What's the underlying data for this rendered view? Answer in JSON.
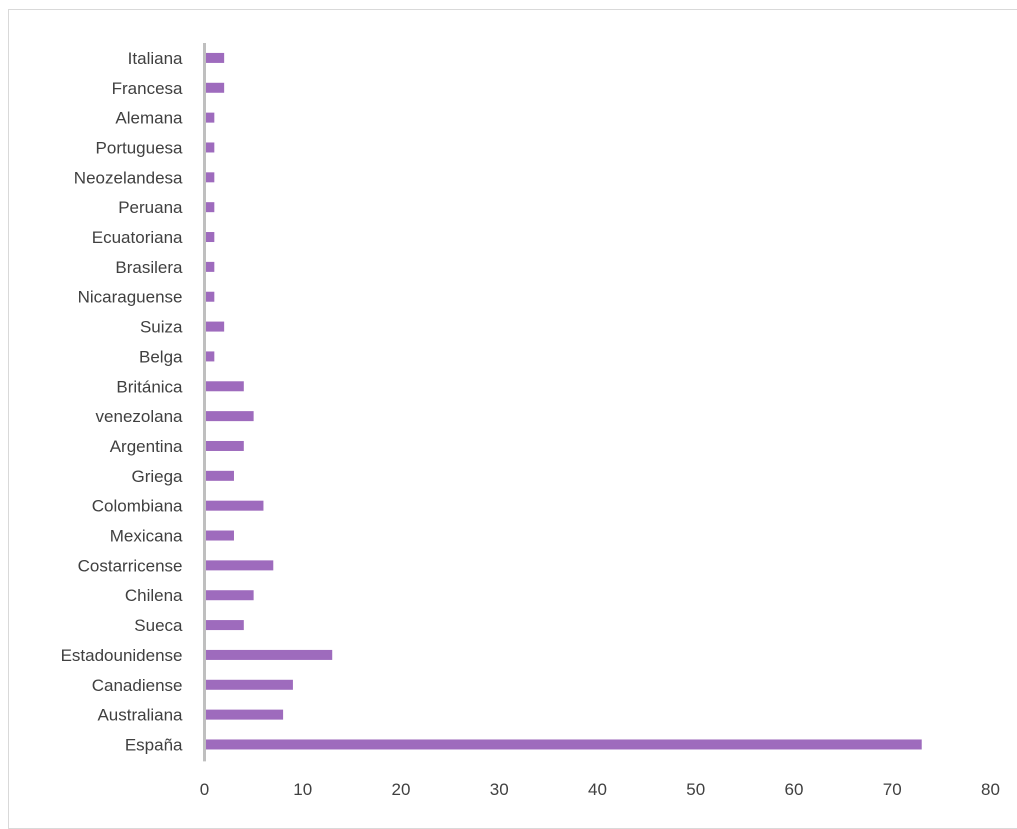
{
  "chart_data": {
    "type": "bar",
    "orientation": "horizontal",
    "title": "",
    "xlabel": "",
    "ylabel": "",
    "categories": [
      "Italiana",
      "Francesa",
      "Alemana",
      "Portuguesa",
      "Neozelandesa",
      "Peruana",
      "Ecuatoriana",
      "Brasilera",
      "Nicaraguense",
      "Suiza",
      "Belga",
      "Británica",
      "venezolana",
      "Argentina",
      "Griega",
      "Colombiana",
      "Mexicana",
      "Costarricense",
      "Chilena",
      "Sueca",
      "Estadounidense",
      "Canadiense",
      "Australiana",
      "España"
    ],
    "values": [
      2,
      2,
      1,
      1,
      1,
      1,
      1,
      1,
      1,
      2,
      1,
      4,
      5,
      4,
      3,
      6,
      3,
      7,
      5,
      4,
      13,
      9,
      8,
      73
    ],
    "xlim": [
      0,
      80
    ],
    "xticks": [
      0,
      10,
      20,
      30,
      40,
      50,
      60,
      70,
      80
    ],
    "grid": false,
    "legend": "none",
    "bar_color": "#9e6bbd",
    "axis_color": "#bfbfbf"
  }
}
